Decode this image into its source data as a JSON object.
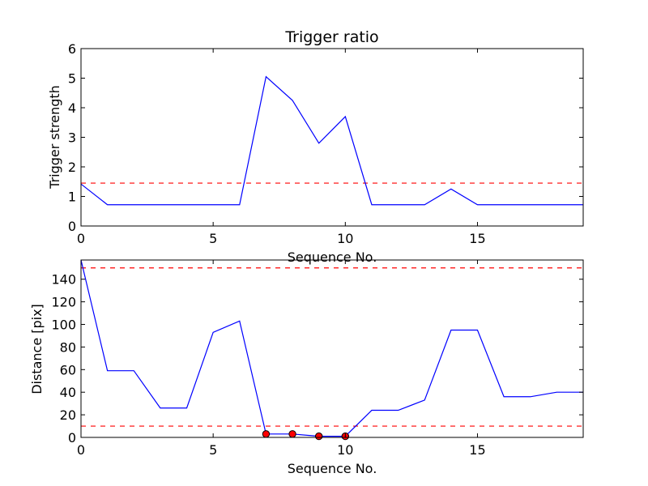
{
  "chart_data": [
    {
      "type": "line",
      "title": "Trigger ratio",
      "xlabel": "Sequence No.",
      "ylabel": "Trigger strength",
      "xlim": [
        0,
        19
      ],
      "ylim": [
        0,
        6
      ],
      "xticks": [
        0,
        5,
        10,
        15
      ],
      "yticks": [
        0,
        1,
        2,
        3,
        4,
        5,
        6
      ],
      "grid": false,
      "series": [
        {
          "x": [
            0,
            1,
            2,
            3,
            4,
            5,
            6,
            7,
            8,
            9,
            10,
            11,
            12,
            13,
            14,
            15,
            16,
            17,
            18,
            19
          ],
          "y": [
            1.42,
            0.72,
            0.72,
            0.72,
            0.72,
            0.72,
            0.72,
            5.05,
            4.25,
            2.8,
            3.7,
            0.72,
            0.72,
            0.72,
            1.25,
            0.72,
            0.72,
            0.72,
            0.72,
            0.72
          ],
          "color": "#0000ff",
          "style": "solid"
        }
      ],
      "hlines": [
        {
          "y": 1.45,
          "color": "#ff0000",
          "style": "dashed"
        }
      ]
    },
    {
      "type": "line",
      "title": "",
      "xlabel": "Sequence No.",
      "ylabel": "Distance [pix]",
      "xlim": [
        0,
        19
      ],
      "ylim": [
        0,
        157
      ],
      "xticks": [
        0,
        5,
        10,
        15
      ],
      "yticks": [
        0,
        20,
        40,
        60,
        80,
        100,
        120,
        140
      ],
      "grid": false,
      "series": [
        {
          "x": [
            0,
            1,
            2,
            3,
            4,
            5,
            6,
            7,
            8,
            9,
            10,
            11,
            12,
            13,
            14,
            15,
            16,
            17,
            18,
            19
          ],
          "y": [
            157,
            59,
            59,
            26,
            26,
            93,
            103,
            3,
            3,
            1,
            1,
            24,
            24,
            33,
            95,
            95,
            36,
            36,
            40,
            40
          ],
          "color": "#0000ff",
          "style": "solid"
        }
      ],
      "markers": {
        "x": [
          7,
          8,
          9,
          10
        ],
        "y": [
          3,
          3,
          1,
          1
        ],
        "color": "#ff0000"
      },
      "hlines": [
        {
          "y": 150,
          "color": "#ff0000",
          "style": "dashed"
        },
        {
          "y": 10,
          "color": "#ff0000",
          "style": "dashed"
        }
      ]
    }
  ]
}
